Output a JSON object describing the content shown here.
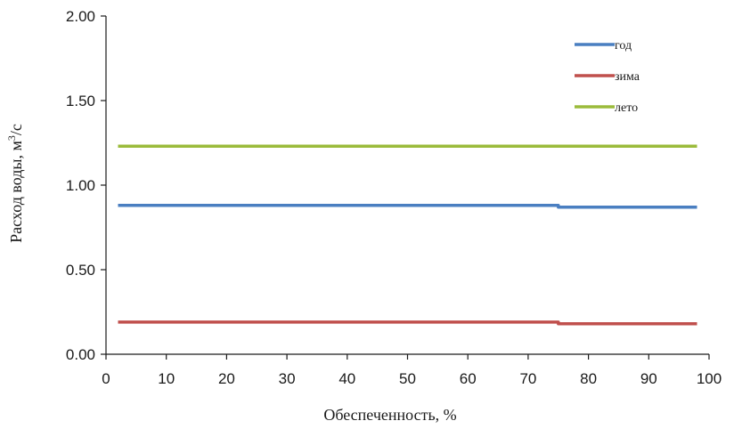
{
  "chart_data": {
    "type": "line",
    "title": "",
    "xlabel": "Обеспеченность, %",
    "ylabel": "Расход воды, м",
    "ylabel_sup": "3",
    "ylabel_suffix": "/с",
    "xlim": [
      0,
      100
    ],
    "ylim": [
      0,
      2.0
    ],
    "x_ticks": [
      0,
      10,
      20,
      30,
      40,
      50,
      60,
      70,
      80,
      90,
      100
    ],
    "x_tick_labels": [
      "0",
      "10",
      "20",
      "30",
      "40",
      "50",
      "60",
      "70",
      "80",
      "90",
      "100"
    ],
    "y_ticks": [
      0,
      0.5,
      1.0,
      1.5,
      2.0
    ],
    "y_tick_labels": [
      "0.00",
      "0.50",
      "1.00",
      "1.50",
      "2.00"
    ],
    "grid": false,
    "legend_position": "top-right",
    "series": [
      {
        "name": "год",
        "color": "#4a7fc1",
        "x": [
          2,
          75,
          75,
          98
        ],
        "y": [
          0.88,
          0.88,
          0.87,
          0.87
        ]
      },
      {
        "name": "зима",
        "color": "#c0504d",
        "x": [
          2,
          75,
          75,
          98
        ],
        "y": [
          0.19,
          0.19,
          0.18,
          0.18
        ]
      },
      {
        "name": "лето",
        "color": "#9bbb3b",
        "x": [
          2,
          98
        ],
        "y": [
          1.23,
          1.23
        ]
      }
    ]
  }
}
